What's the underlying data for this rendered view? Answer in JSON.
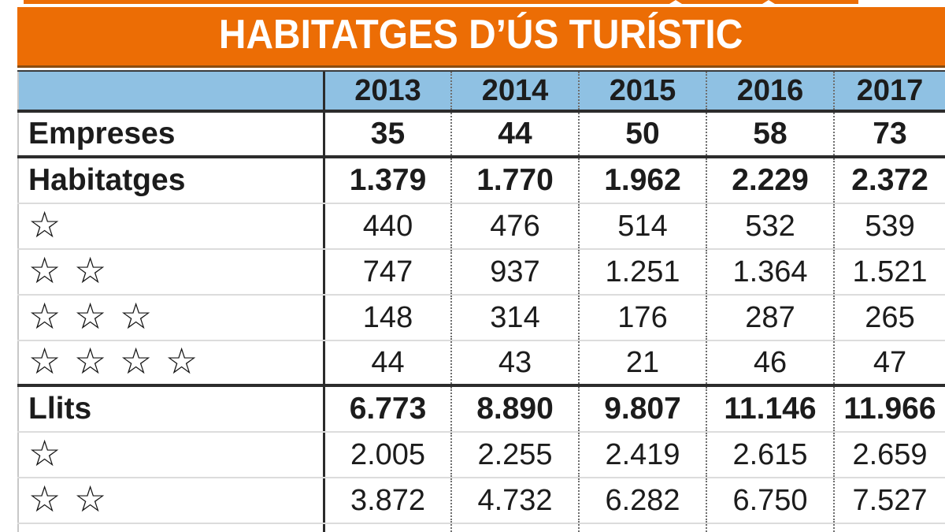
{
  "banner": {
    "title": "HABITATGES D’ÚS TURÍSTIC"
  },
  "colors": {
    "banner_orange": "#EC6D05",
    "banner_shadow": "#8a4d10",
    "header_blue": "#8FC1E3",
    "text_black": "#1c1c1c",
    "grid_light": "#dcdcdc",
    "grid_dark": "#2c2c2c"
  },
  "table": {
    "columns": [
      "",
      "2013",
      "2014",
      "2015",
      "2016",
      "2017"
    ],
    "rows": [
      {
        "label": "Empreses",
        "bold": true,
        "values": [
          "35",
          "44",
          "50",
          "58",
          "73"
        ]
      },
      {
        "label": "Habitatges",
        "bold": true,
        "values": [
          "1.379",
          "1.770",
          "1.962",
          "2.229",
          "2.372"
        ]
      },
      {
        "label": "☆",
        "bold": false,
        "values": [
          "440",
          "476",
          "514",
          "532",
          "539"
        ]
      },
      {
        "label": "☆ ☆",
        "bold": false,
        "values": [
          "747",
          "937",
          "1.251",
          "1.364",
          "1.521"
        ]
      },
      {
        "label": "☆ ☆ ☆",
        "bold": false,
        "values": [
          "148",
          "314",
          "176",
          "287",
          "265"
        ]
      },
      {
        "label": "☆ ☆ ☆ ☆",
        "bold": false,
        "values": [
          "44",
          "43",
          "21",
          "46",
          "47"
        ]
      },
      {
        "label": "Llits",
        "bold": true,
        "values": [
          "6.773",
          "8.890",
          "9.807",
          "11.146",
          "11.966"
        ]
      },
      {
        "label": "☆",
        "bold": false,
        "values": [
          "2.005",
          "2.255",
          "2.419",
          "2.615",
          "2.659"
        ]
      },
      {
        "label": "☆ ☆",
        "bold": false,
        "values": [
          "3.872",
          "4.732",
          "6.282",
          "6.750",
          "7.527"
        ]
      }
    ]
  }
}
